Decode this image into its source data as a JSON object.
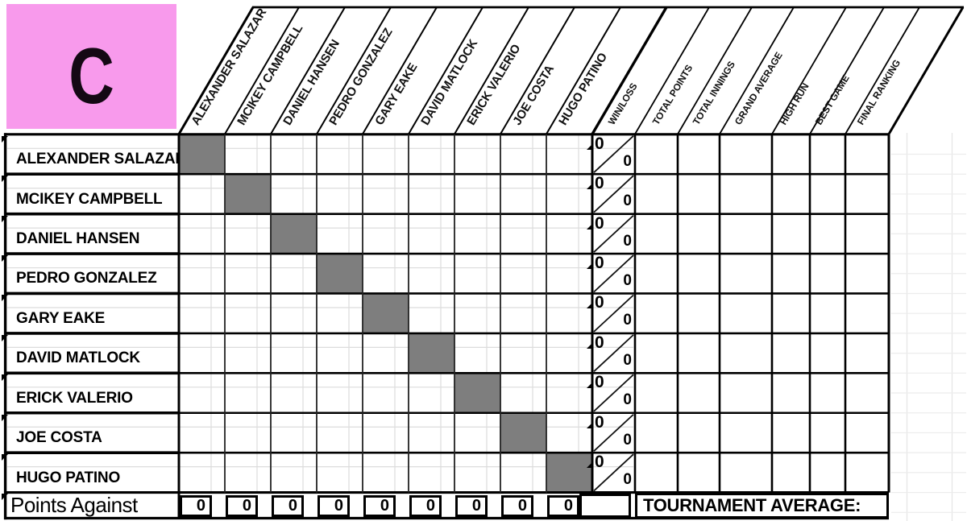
{
  "sheet": {
    "group_label": "C",
    "players": [
      "ALEXANDER SALAZAR",
      "MCIKEY CAMPBELL",
      "DANIEL HANSEN",
      "PEDRO GONZALEZ",
      "GARY EAKE",
      "DAVID MATLOCK",
      "ERICK VALERIO",
      "JOE COSTA",
      "HUGO PATINO"
    ],
    "stat_columns": [
      "WIN/LOSS",
      "TOTAL POINTS",
      "TOTAL INNINGS",
      "GRAND AVERAGE",
      "HIGH RUN",
      "BEST GAME",
      "FINAL RANKING"
    ],
    "win_loss": [
      {
        "wins": "0",
        "losses": "0"
      },
      {
        "wins": "0",
        "losses": "0"
      },
      {
        "wins": "0",
        "losses": "0"
      },
      {
        "wins": "0",
        "losses": "0"
      },
      {
        "wins": "0",
        "losses": "0"
      },
      {
        "wins": "0",
        "losses": "0"
      },
      {
        "wins": "0",
        "losses": "0"
      },
      {
        "wins": "0",
        "losses": "0"
      },
      {
        "wins": "0",
        "losses": "0"
      }
    ],
    "points_against": {
      "label": "Points Against",
      "values": [
        "0",
        "0",
        "0",
        "0",
        "0",
        "0",
        "0",
        "0",
        "0"
      ]
    },
    "footer": {
      "tournament_average_label": "TOURNAMENT AVERAGE:"
    },
    "colors": {
      "group_box_pink": "#F89AEC",
      "blocked_cell_gray": "#7E7E7E",
      "grid_line": "#000000",
      "faint_grid": "#DCDCDC"
    }
  }
}
